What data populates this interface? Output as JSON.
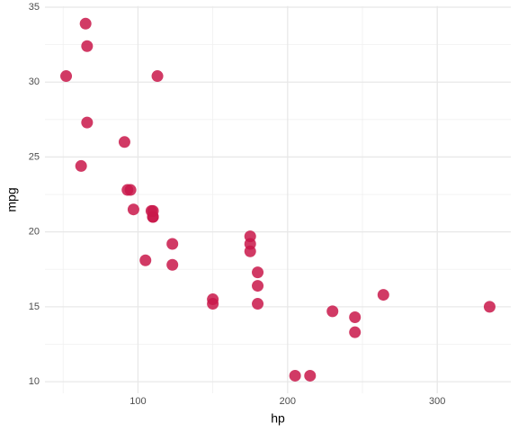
{
  "chart_data": {
    "type": "scatter",
    "x_label": "hp",
    "y_label": "mpg",
    "x": [
      110,
      110,
      93,
      110,
      175,
      105,
      245,
      62,
      95,
      123,
      123,
      180,
      180,
      180,
      205,
      215,
      230,
      66,
      52,
      65,
      97,
      150,
      150,
      245,
      175,
      66,
      91,
      113,
      264,
      175,
      335,
      109
    ],
    "values": [
      21.0,
      21.0,
      22.8,
      21.4,
      18.7,
      18.1,
      14.3,
      24.4,
      22.8,
      19.2,
      17.8,
      16.4,
      17.3,
      15.2,
      10.4,
      10.4,
      14.7,
      32.4,
      30.4,
      33.9,
      21.5,
      15.5,
      15.2,
      13.3,
      19.2,
      27.3,
      26.0,
      30.4,
      15.8,
      19.7,
      15.0,
      21.4
    ],
    "color": "#c9184a",
    "xlim": [
      37.85,
      349.15
    ],
    "ylim": [
      9.225,
      35.075
    ],
    "xticks": [
      100,
      200,
      300
    ],
    "yticks": [
      10,
      15,
      20,
      25,
      30,
      35
    ],
    "grid": true
  }
}
